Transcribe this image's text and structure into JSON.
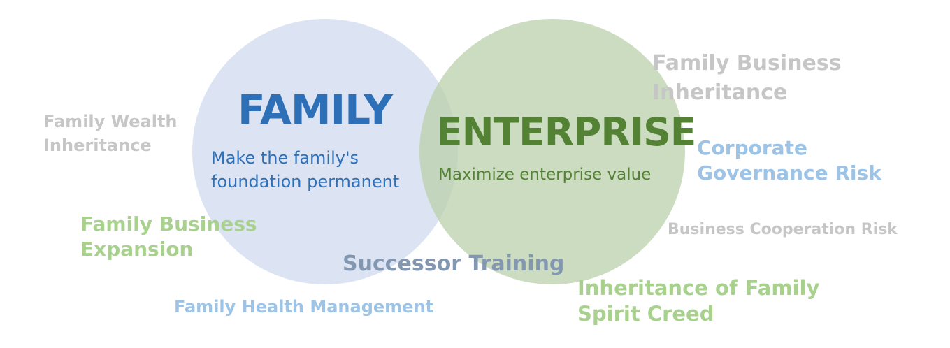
{
  "colors": {
    "family_circle": "#cfd9f0",
    "enterprise_circle": "#bbd0ab",
    "family_blue": "#2e70b8",
    "enterprise_green": "#548235",
    "light_gray": "#c6c6c6",
    "light_green": "#a9d18e",
    "light_blue": "#9dc3e6",
    "slate": "#8497b0"
  },
  "family": {
    "title": "FAMILY",
    "subtitle_lines": [
      "Make the family's",
      "foundation permanent"
    ]
  },
  "enterprise": {
    "title": "ENTERPRISE",
    "subtitle": "Maximize enterprise value"
  },
  "topics": {
    "family_wealth_inheritance": [
      "Family Wealth",
      "Inheritance"
    ],
    "family_business_expansion": [
      "Family Business",
      "Expansion"
    ],
    "family_health_management": "Family Health Management",
    "successor_training": "Successor Training",
    "family_business_inheritance": [
      "Family Business",
      "Inheritance"
    ],
    "corporate_governance_risk": [
      "Corporate",
      "Governance Risk"
    ],
    "business_cooperation_risk": "Business Cooperation Risk",
    "inheritance_family_spirit_creed": [
      "Inheritance of Family",
      "Spirit Creed"
    ]
  }
}
